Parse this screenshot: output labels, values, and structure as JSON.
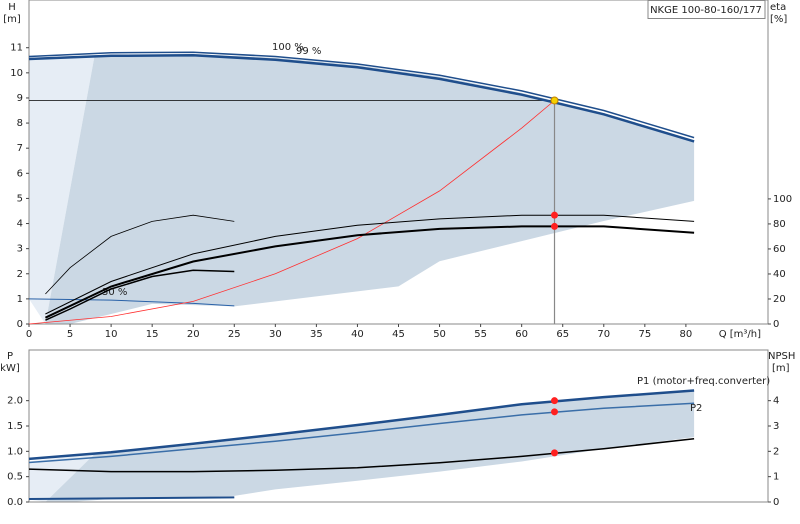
{
  "chart_data": [
    {
      "type": "line",
      "title": "NKGE 100-80-160/177",
      "ylabel": "H",
      "yunit": "[m]",
      "y2label": "eta",
      "y2unit": "[%]",
      "xlabel": "Q [m³/h]",
      "xlim": [
        0,
        90
      ],
      "xticks": [
        0,
        5,
        10,
        15,
        20,
        25,
        30,
        35,
        40,
        45,
        50,
        55,
        60,
        65,
        70,
        75,
        80
      ],
      "ylim": [
        0,
        12.9
      ],
      "yticks": [
        0,
        1,
        2,
        3,
        4,
        5,
        6,
        7,
        8,
        9,
        10,
        11
      ],
      "y2lim": [
        0,
        259
      ],
      "y2ticks": [
        0,
        20,
        40,
        60,
        80,
        100
      ],
      "areas": [
        {
          "color": "#e6edf5",
          "x": [
            0,
            8,
            2,
            0
          ],
          "values": [
            10.55,
            10.7,
            0,
            1.0
          ]
        },
        {
          "color": "#cbd8e4",
          "x": [
            2,
            8,
            20,
            30,
            40,
            50,
            60,
            70,
            81,
            81,
            70,
            60,
            50,
            45,
            35,
            25,
            15,
            5
          ],
          "values": [
            0,
            10.7,
            10.75,
            10.6,
            10.3,
            9.85,
            9.2,
            8.4,
            7.3,
            4.9,
            4.1,
            3.3,
            2.5,
            1.5,
            1.1,
            0.7,
            0.8,
            0
          ]
        }
      ],
      "series": [
        {
          "name": "100 %",
          "color": "#1f4e8c",
          "width": 1.5,
          "x": [
            0,
            10,
            20,
            30,
            40,
            50,
            60,
            70,
            81
          ],
          "values": [
            10.65,
            10.8,
            10.82,
            10.65,
            10.35,
            9.9,
            9.28,
            8.5,
            7.42
          ]
        },
        {
          "name": "99 %",
          "color": "#1f4e8c",
          "width": 2.5,
          "x": [
            0,
            10,
            20,
            30,
            40,
            50,
            60,
            70,
            81
          ],
          "values": [
            10.55,
            10.68,
            10.7,
            10.52,
            10.22,
            9.76,
            9.13,
            8.35,
            7.27
          ]
        },
        {
          "name": "30 %",
          "color": "#2a62a8",
          "width": 1,
          "x": [
            0,
            10,
            20,
            25
          ],
          "values": [
            1.0,
            0.95,
            0.82,
            0.72
          ]
        },
        {
          "color": "#ff3030",
          "width": 0.8,
          "x": [
            0,
            10,
            20,
            30,
            40,
            50,
            60,
            64
          ],
          "values": [
            0,
            0.3,
            0.9,
            2.0,
            3.4,
            5.3,
            7.8,
            8.9
          ]
        },
        {
          "axis": "y2",
          "color": "#000000",
          "width": 1,
          "x": [
            2,
            10,
            20,
            30,
            40,
            50,
            60,
            70,
            81
          ],
          "values": [
            8,
            34,
            56,
            70,
            79,
            84,
            87,
            87,
            82
          ]
        },
        {
          "axis": "y2",
          "color": "#000000",
          "width": 2,
          "x": [
            2,
            10,
            20,
            30,
            40,
            50,
            60,
            70,
            81
          ],
          "values": [
            5,
            30,
            50,
            62,
            71,
            76,
            78,
            78,
            73
          ]
        },
        {
          "axis": "y2",
          "color": "#000000",
          "width": 0.8,
          "x": [
            2,
            5,
            10,
            15,
            20,
            25
          ],
          "values": [
            24,
            45,
            70,
            82,
            87,
            82
          ]
        },
        {
          "axis": "y2",
          "color": "#000000",
          "width": 1.5,
          "x": [
            2,
            5,
            10,
            15,
            20,
            25
          ],
          "values": [
            3,
            12,
            28,
            38,
            43,
            42
          ]
        }
      ],
      "points": [
        {
          "x": 64,
          "y": 8.9,
          "color": "#f5d000",
          "guides": true
        },
        {
          "x": 64,
          "y": 87,
          "axis": "y2",
          "color": "#ff2020"
        },
        {
          "x": 64,
          "y": 78,
          "axis": "y2",
          "color": "#ff2020"
        }
      ]
    },
    {
      "type": "line",
      "ylabel": "P",
      "yunit": "[kW]",
      "y2label": "NPSH",
      "y2unit": "[m]",
      "xlim": [
        0,
        90
      ],
      "ylim": [
        0,
        3.0
      ],
      "yticks": [
        {
          "value": 0,
          "label": "0.0"
        },
        {
          "value": 0.5,
          "label": "0.5"
        },
        {
          "value": 1,
          "label": "1.0"
        },
        {
          "value": 1.5,
          "label": "1.5"
        },
        {
          "value": 2,
          "label": "2.0"
        }
      ],
      "y2lim": [
        0,
        6
      ],
      "y2ticks": [
        0,
        1,
        2,
        3,
        4
      ],
      "areas": [
        {
          "color": "#e6edf5",
          "x": [
            0,
            8,
            2,
            0
          ],
          "values": [
            0.8,
            0.95,
            0,
            0.05
          ]
        },
        {
          "color": "#cbd8e4",
          "x": [
            2,
            8,
            20,
            30,
            40,
            50,
            60,
            70,
            81,
            81,
            70,
            60,
            50,
            40,
            30,
            25,
            10,
            5
          ],
          "values": [
            0,
            0.95,
            1.12,
            1.32,
            1.52,
            1.72,
            1.92,
            2.07,
            2.2,
            1.28,
            1.05,
            0.8,
            0.6,
            0.42,
            0.25,
            0.12,
            0.06,
            0
          ]
        }
      ],
      "series": [
        {
          "name": "P1 (motor+freq.converter)",
          "color": "#1f4e8c",
          "width": 2.5,
          "x": [
            0,
            10,
            20,
            30,
            40,
            50,
            60,
            70,
            81
          ],
          "values": [
            0.85,
            0.98,
            1.15,
            1.33,
            1.52,
            1.72,
            1.93,
            2.07,
            2.2
          ]
        },
        {
          "name": "P2",
          "color": "#3a6ea8",
          "width": 1.5,
          "x": [
            0,
            10,
            20,
            30,
            40,
            50,
            60,
            70,
            81
          ],
          "values": [
            0.78,
            0.9,
            1.05,
            1.2,
            1.37,
            1.55,
            1.72,
            1.85,
            1.95
          ]
        },
        {
          "axis": "y2",
          "color": "#000000",
          "width": 1.5,
          "x": [
            0,
            10,
            20,
            30,
            40,
            50,
            60,
            70,
            81
          ],
          "values": [
            1.3,
            1.2,
            1.2,
            1.25,
            1.35,
            1.55,
            1.8,
            2.1,
            2.5
          ]
        },
        {
          "color": "#1f4e8c",
          "width": 2,
          "x": [
            0,
            25
          ],
          "values": [
            0.06,
            0.09
          ]
        }
      ],
      "points": [
        {
          "x": 64,
          "y": 2.0,
          "color": "#ff2020"
        },
        {
          "x": 64,
          "y": 1.78,
          "color": "#ff2020"
        },
        {
          "x": 64,
          "y": 1.94,
          "axis": "y2",
          "color": "#ff2020"
        }
      ]
    }
  ]
}
